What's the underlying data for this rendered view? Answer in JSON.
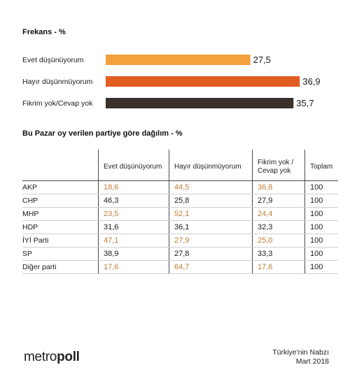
{
  "chart_data": [
    {
      "type": "bar",
      "orientation": "horizontal",
      "title": "Frekans - %",
      "categories": [
        "Evet düşünüyorum",
        "Hayır düşünmüyorum",
        "Fikrim yok/Cevap yok"
      ],
      "values": [
        27.5,
        36.9,
        35.7
      ],
      "value_labels": [
        "27,5",
        "36,9",
        "35,7"
      ],
      "colors": [
        "#f2a13c",
        "#e25d22",
        "#3a302c"
      ],
      "xlim": [
        0,
        37
      ]
    },
    {
      "type": "table",
      "title": "Bu Pazar oy verilen partiye göre dağılım - %",
      "columns": [
        "",
        "Evet düşünüyorum",
        "Hayır düşünmüyorum",
        "Fikrim yok / Cevap yok",
        "Toplam"
      ],
      "rows": [
        {
          "name": "AKP",
          "values": [
            "18,6",
            "44,5",
            "36,8",
            "100"
          ],
          "tone": "orange"
        },
        {
          "name": "CHP",
          "values": [
            "46,3",
            "25,8",
            "27,9",
            "100"
          ],
          "tone": "black"
        },
        {
          "name": "MHP",
          "values": [
            "23,5",
            "52,1",
            "24,4",
            "100"
          ],
          "tone": "orange"
        },
        {
          "name": "HDP",
          "values": [
            "31,6",
            "36,1",
            "32,3",
            "100"
          ],
          "tone": "black"
        },
        {
          "name": "İYİ Parti",
          "values": [
            "47,1",
            "27,9",
            "25,0",
            "100"
          ],
          "tone": "orange"
        },
        {
          "name": "SP",
          "values": [
            "38,9",
            "27,8",
            "33,3",
            "100"
          ],
          "tone": "black"
        },
        {
          "name": "Diğer parti",
          "values": [
            "17,6",
            "64,7",
            "17,6",
            "100"
          ],
          "tone": "orange"
        }
      ]
    }
  ],
  "footer": {
    "brand_light": "metro",
    "brand_bold": "poll",
    "source_line1": "Türkiye'nin Nabzı",
    "source_line2": "Mart 2018"
  },
  "colors": {
    "orange_text": "#c27d33",
    "dark_text": "#1a1a1a"
  }
}
